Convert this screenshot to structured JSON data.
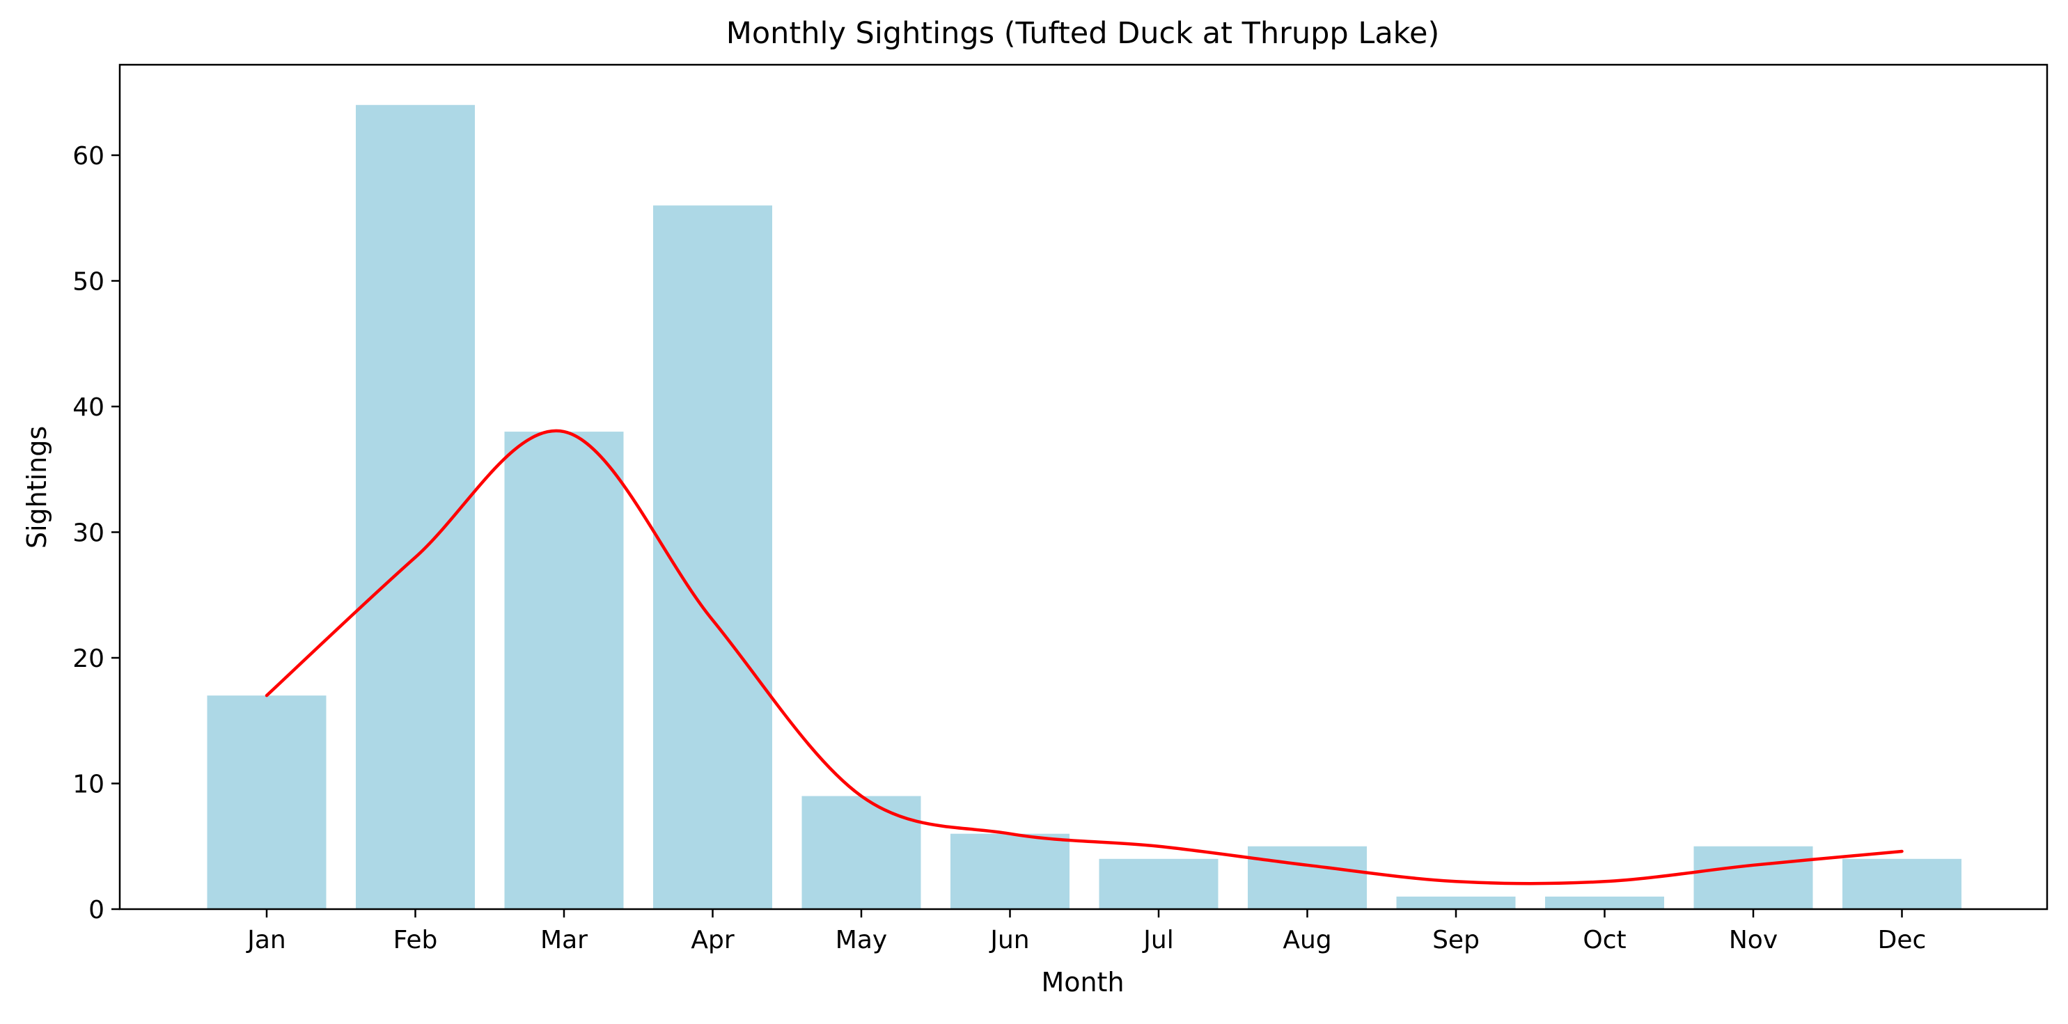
{
  "chart_data": {
    "type": "bar",
    "title": "Monthly Sightings (Tufted Duck at Thrupp Lake)",
    "xlabel": "Month",
    "ylabel": "Sightings",
    "categories": [
      "Jan",
      "Feb",
      "Mar",
      "Apr",
      "May",
      "Jun",
      "Jul",
      "Aug",
      "Sep",
      "Oct",
      "Nov",
      "Dec"
    ],
    "values": [
      17,
      64,
      38,
      56,
      9,
      6,
      4,
      5,
      1,
      1,
      5,
      4
    ],
    "trend_line": [
      17,
      28,
      38,
      23,
      9,
      6,
      5,
      3.5,
      2.2,
      2.2,
      3.5,
      4.6
    ],
    "ylim": [
      0,
      67.2
    ],
    "yticks": [
      0,
      10,
      20,
      30,
      40,
      50,
      60
    ],
    "grid": false,
    "colors": {
      "bar": "#add8e6",
      "line": "#ff0000",
      "axis": "#000000"
    }
  }
}
